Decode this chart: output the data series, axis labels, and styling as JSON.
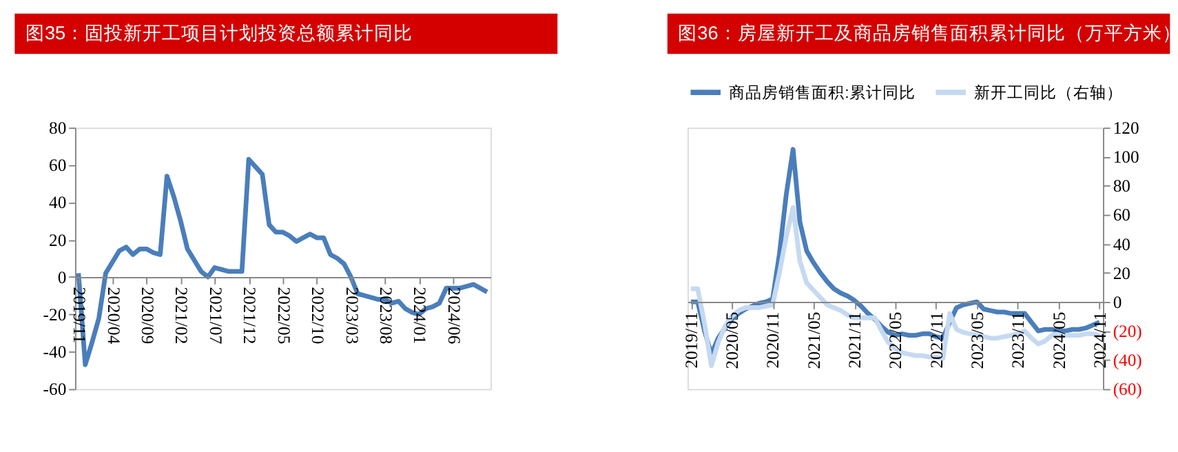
{
  "chart_data": [
    {
      "type": "line",
      "title": "图35：固投新开工项目计划投资总额累计同比",
      "categories": [
        "2019/11",
        null,
        null,
        null,
        null,
        "2020/04",
        null,
        null,
        null,
        null,
        "2020/09",
        null,
        null,
        null,
        null,
        "2021/02",
        null,
        null,
        null,
        null,
        "2021/07",
        null,
        null,
        null,
        null,
        "2021/12",
        null,
        null,
        null,
        null,
        "2022/05",
        null,
        null,
        null,
        null,
        "2022/10",
        null,
        null,
        null,
        null,
        "2023/03",
        null,
        null,
        null,
        null,
        "2023/08",
        null,
        null,
        null,
        null,
        "2024/01",
        null,
        null,
        null,
        null,
        "2024/06",
        null,
        null,
        null,
        null,
        null
      ],
      "series": [
        {
          "color": "#4a7ebb",
          "values": [
            2,
            -47,
            -35,
            -22,
            2,
            8,
            14,
            16,
            12,
            15,
            15,
            13,
            12,
            54,
            43,
            30,
            15,
            9,
            3,
            0,
            5,
            4,
            3,
            3,
            3,
            63,
            59,
            55,
            28,
            24,
            24,
            22,
            19,
            21,
            23,
            21,
            21,
            12,
            10,
            7,
            0,
            -9,
            -10,
            -11,
            -12,
            -12,
            -14,
            -13,
            -17,
            -19,
            -20,
            -17,
            -16,
            -14,
            -6,
            -6,
            -6,
            -5,
            -4,
            -6,
            -8
          ]
        }
      ],
      "ylim": [
        -60,
        80
      ],
      "yticks": [
        -60,
        -40,
        -20,
        0,
        20,
        40,
        60,
        80
      ],
      "grid": false,
      "legend": false
    },
    {
      "type": "line",
      "title": "图36：房屋新开工及商品房销售面积累计同比（万平方米）",
      "categories": [
        "2019/11",
        null,
        null,
        null,
        null,
        null,
        "2020/05",
        null,
        null,
        null,
        null,
        null,
        "2020/11",
        null,
        null,
        null,
        null,
        null,
        "2021/05",
        null,
        null,
        null,
        null,
        null,
        "2021/11",
        null,
        null,
        null,
        null,
        null,
        "2022/05",
        null,
        null,
        null,
        null,
        null,
        "2022/11",
        null,
        null,
        null,
        null,
        null,
        "2023/05",
        null,
        null,
        null,
        null,
        null,
        "2023/11",
        null,
        null,
        null,
        null,
        null,
        "2024/05",
        null,
        null,
        null,
        null,
        null,
        "2024/11"
      ],
      "series": [
        {
          "name": "商品房销售面积:累计同比",
          "color": "#4a7ebb",
          "axis": "y2",
          "values": [
            0,
            0,
            -20,
            -36,
            -25,
            -18,
            -12,
            -8,
            -5,
            -3,
            -1,
            0,
            2,
            33,
            74,
            105,
            55,
            35,
            27,
            20,
            14,
            9,
            6,
            4,
            1,
            -3,
            -8,
            -12,
            -17,
            -21,
            -23,
            -22,
            -23,
            -23,
            -22,
            -22,
            -24,
            -25,
            -14,
            -4,
            -2,
            -1,
            0,
            -5,
            -6,
            -7,
            -7,
            -8,
            -8,
            -8,
            -14,
            -20,
            -19,
            -19,
            -20,
            -20,
            -19,
            -19,
            -18,
            -16,
            -14
          ]
        },
        {
          "name": "新开工同比（右轴）",
          "color": "#c5d9f1",
          "axis": "y2",
          "values": [
            9,
            9,
            -15,
            -44,
            -28,
            -17,
            -10,
            -6,
            -4,
            -4,
            -4,
            -3,
            -2,
            20,
            45,
            65,
            28,
            13,
            8,
            3,
            -2,
            -4,
            -6,
            -9,
            -11,
            -11,
            -11,
            -11,
            -20,
            -28,
            -32,
            -35,
            -36,
            -37,
            -37,
            -38,
            -38,
            -39,
            -8,
            -19,
            -21,
            -22,
            -23,
            -24,
            -25,
            -25,
            -24,
            -23,
            -22,
            -20,
            -25,
            -29,
            -27,
            -23,
            -22,
            -23,
            -23,
            -23,
            -22,
            -22,
            -23
          ]
        }
      ],
      "y2lim": [
        -60,
        120
      ],
      "y2ticks": [
        {
          "value": -60,
          "label": "(60)"
        },
        {
          "value": -40,
          "label": "(40)"
        },
        {
          "value": -20,
          "label": "(20)"
        },
        0,
        20,
        40,
        60,
        80,
        100,
        120
      ],
      "grid": false,
      "legend": "top"
    }
  ]
}
